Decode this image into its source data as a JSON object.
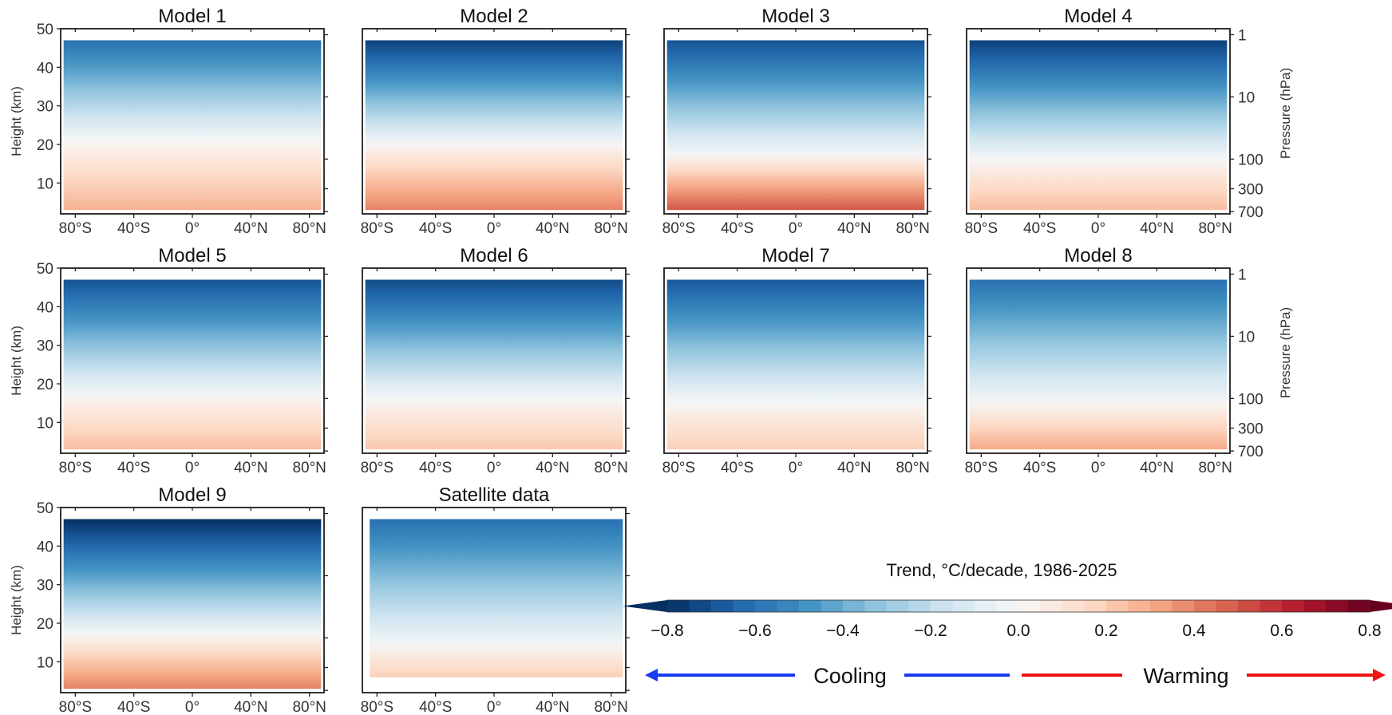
{
  "chart_data": {
    "type": "heatmap",
    "layout": "small-multiples grid, 3 rows by 4 columns",
    "x_tick_labels": [
      "80°S",
      "40°S",
      "0°",
      "40°N",
      "80°N"
    ],
    "x_ticks_deg": [
      -80,
      -40,
      0,
      40,
      80
    ],
    "x_range_deg": [
      -90,
      90
    ],
    "height_ylabel": "Height (km)",
    "height_ticks_km": [
      10,
      20,
      30,
      40,
      50
    ],
    "height_range_km": [
      2,
      50
    ],
    "pressure_ylabel": "Pressure (hPa)",
    "pressure_ticks_hpa": [
      1,
      10,
      100,
      300,
      700
    ],
    "panels": [
      {
        "title": "Model 1",
        "data_levels_km": [
          3,
          47
        ],
        "trend_near_surface": 0.28,
        "trend_top": -0.6,
        "zero_height_km": 21
      },
      {
        "title": "Model 2",
        "data_levels_km": [
          3,
          47
        ],
        "trend_near_surface": 0.4,
        "trend_top": -0.75,
        "zero_height_km": 20
      },
      {
        "title": "Model 3",
        "data_levels_km": [
          3,
          47
        ],
        "trend_near_surface": 0.5,
        "trend_top": -0.7,
        "zero_height_km": 17
      },
      {
        "title": "Model 4",
        "data_levels_km": [
          3,
          47
        ],
        "trend_near_surface": 0.25,
        "trend_top": -0.75,
        "zero_height_km": 16
      },
      {
        "title": "Model 5",
        "data_levels_km": [
          3,
          47
        ],
        "trend_near_surface": 0.25,
        "trend_top": -0.7,
        "zero_height_km": 17
      },
      {
        "title": "Model 6",
        "data_levels_km": [
          3,
          47
        ],
        "trend_near_surface": 0.22,
        "trend_top": -0.72,
        "zero_height_km": 16
      },
      {
        "title": "Model 7",
        "data_levels_km": [
          3,
          47
        ],
        "trend_near_surface": 0.2,
        "trend_top": -0.68,
        "zero_height_km": 15
      },
      {
        "title": "Model 8",
        "data_levels_km": [
          3,
          47
        ],
        "trend_near_surface": 0.3,
        "trend_top": -0.6,
        "zero_height_km": 15
      },
      {
        "title": "Model 9",
        "data_levels_km": [
          3,
          47
        ],
        "trend_near_surface": 0.4,
        "trend_top": -0.8,
        "zero_height_km": 17
      },
      {
        "title": "Satellite data",
        "data_levels_km": [
          6,
          47
        ],
        "trend_near_surface": 0.2,
        "trend_top": -0.6,
        "zero_height_km": 14
      }
    ],
    "colorbar": {
      "title": "Trend, °C/decade, 1986-2025",
      "range": [
        -0.8,
        0.8
      ],
      "step": 0.05,
      "extend": "both",
      "tick_values": [
        -0.8,
        -0.6,
        -0.4,
        -0.2,
        0.0,
        0.2,
        0.4,
        0.6,
        0.8
      ],
      "tick_labels": [
        "−0.8",
        "−0.6",
        "−0.4",
        "−0.2",
        "0.0",
        "0.2",
        "0.4",
        "0.6",
        "0.8"
      ],
      "colormap": "RdBu_r",
      "stops": [
        "#053061",
        "#2166ac",
        "#4393c3",
        "#92c5de",
        "#d1e5f0",
        "#f7f7f7",
        "#fddbc7",
        "#f4a582",
        "#d6604d",
        "#b2182b",
        "#67001f"
      ]
    },
    "arrows": {
      "cooling_label": "Cooling",
      "warming_label": "Warming",
      "cooling_color": "#1a3cf0",
      "warming_color": "#f01414"
    }
  }
}
